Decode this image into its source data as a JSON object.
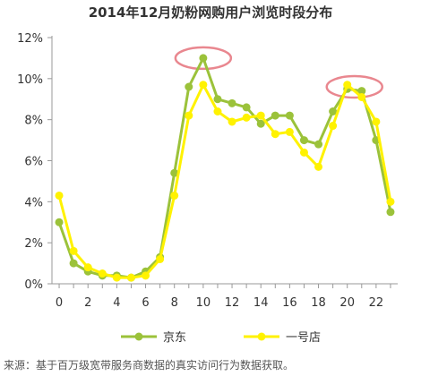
{
  "chart_data": {
    "type": "line",
    "title": "2014年12月奶粉网购用户浏览时段分布",
    "xlabel": "",
    "ylabel": "",
    "x": [
      0,
      1,
      2,
      3,
      4,
      5,
      6,
      7,
      8,
      9,
      10,
      11,
      12,
      13,
      14,
      15,
      16,
      17,
      18,
      19,
      20,
      21,
      22,
      23
    ],
    "x_ticks": [
      "0",
      "2",
      "4",
      "6",
      "8",
      "10",
      "12",
      "14",
      "16",
      "18",
      "20",
      "22"
    ],
    "x_tick_values": [
      0,
      2,
      4,
      6,
      8,
      10,
      12,
      14,
      16,
      18,
      20,
      22
    ],
    "xlim": [
      -0.5,
      23.5
    ],
    "y_ticks": [
      "0%",
      "2%",
      "4%",
      "6%",
      "8%",
      "10%",
      "12%"
    ],
    "y_tick_values": [
      0,
      2,
      4,
      6,
      8,
      10,
      12
    ],
    "ylim": [
      0,
      12
    ],
    "grid": false,
    "legend_position": "bottom",
    "series": [
      {
        "name": "京东",
        "color": "#9BC23A",
        "values": [
          3.0,
          1.0,
          0.6,
          0.4,
          0.4,
          0.3,
          0.6,
          1.3,
          5.4,
          9.6,
          11.0,
          9.0,
          8.8,
          8.6,
          7.8,
          8.2,
          8.2,
          7.0,
          6.8,
          8.4,
          9.5,
          9.4,
          7.0,
          3.5
        ]
      },
      {
        "name": "一号店",
        "color": "#FFF200",
        "values": [
          4.3,
          1.6,
          0.8,
          0.5,
          0.3,
          0.3,
          0.4,
          1.2,
          4.3,
          8.2,
          9.7,
          8.4,
          7.9,
          8.1,
          8.2,
          7.3,
          7.4,
          6.4,
          5.7,
          7.7,
          9.7,
          9.1,
          7.9,
          4.0
        ]
      }
    ],
    "annotations": [
      {
        "shape": "ellipse",
        "color": "#E9878F",
        "x_center": 10,
        "y_center": 11.0
      },
      {
        "shape": "ellipse",
        "color": "#E9878F",
        "x_center": 20.5,
        "y_center": 9.6
      }
    ]
  },
  "source_note": "来源：基于百万级宽带服务商数据的真实访问行为数据获取。"
}
